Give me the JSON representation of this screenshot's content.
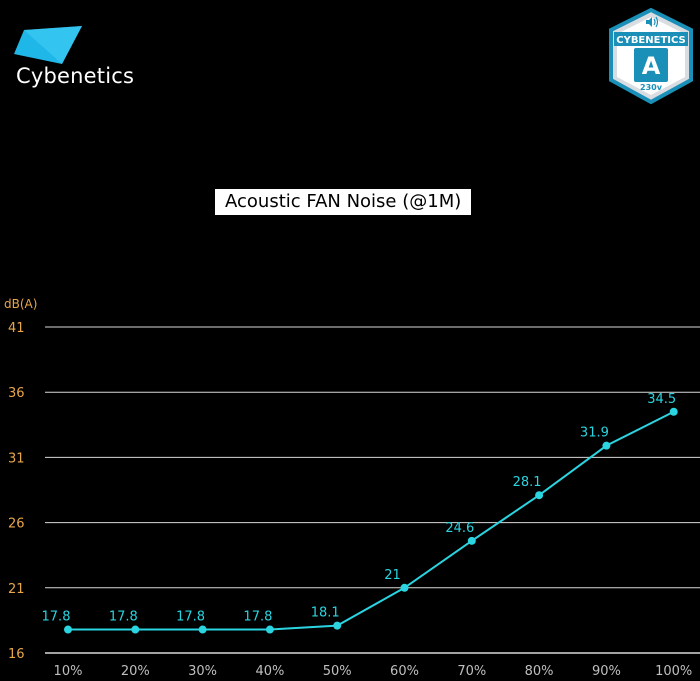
{
  "brand": {
    "name": "Cybenetics",
    "accent": "#1fb6e8"
  },
  "badge": {
    "top_text": "CYBENETICS",
    "grade": "A",
    "voltage": "230v",
    "color": "#1a8fb8"
  },
  "chart_data": {
    "type": "line",
    "title": "Acoustic FAN Noise (@1M)",
    "xlabel": "",
    "ylabel": "dB(A)",
    "categories": [
      "10%",
      "20%",
      "30%",
      "40%",
      "50%",
      "60%",
      "70%",
      "80%",
      "90%",
      "100%"
    ],
    "series": [
      {
        "values": [
          17.8,
          17.8,
          17.8,
          17.8,
          18.1,
          21,
          24.6,
          28.1,
          31.9,
          34.5
        ],
        "color": "#2ad4e0"
      }
    ],
    "data_labels": [
      "17.8",
      "17.8",
      "17.8",
      "17.8",
      "18.1",
      "21",
      "24.6",
      "28.1",
      "31.9",
      "34.5"
    ],
    "yticks": [
      "16",
      "21",
      "26",
      "31",
      "36",
      "41"
    ],
    "ylim": [
      16,
      41
    ],
    "grid": true,
    "gridline_color": "#d9d9d9",
    "axis_tick_color": "#e8a64a"
  }
}
